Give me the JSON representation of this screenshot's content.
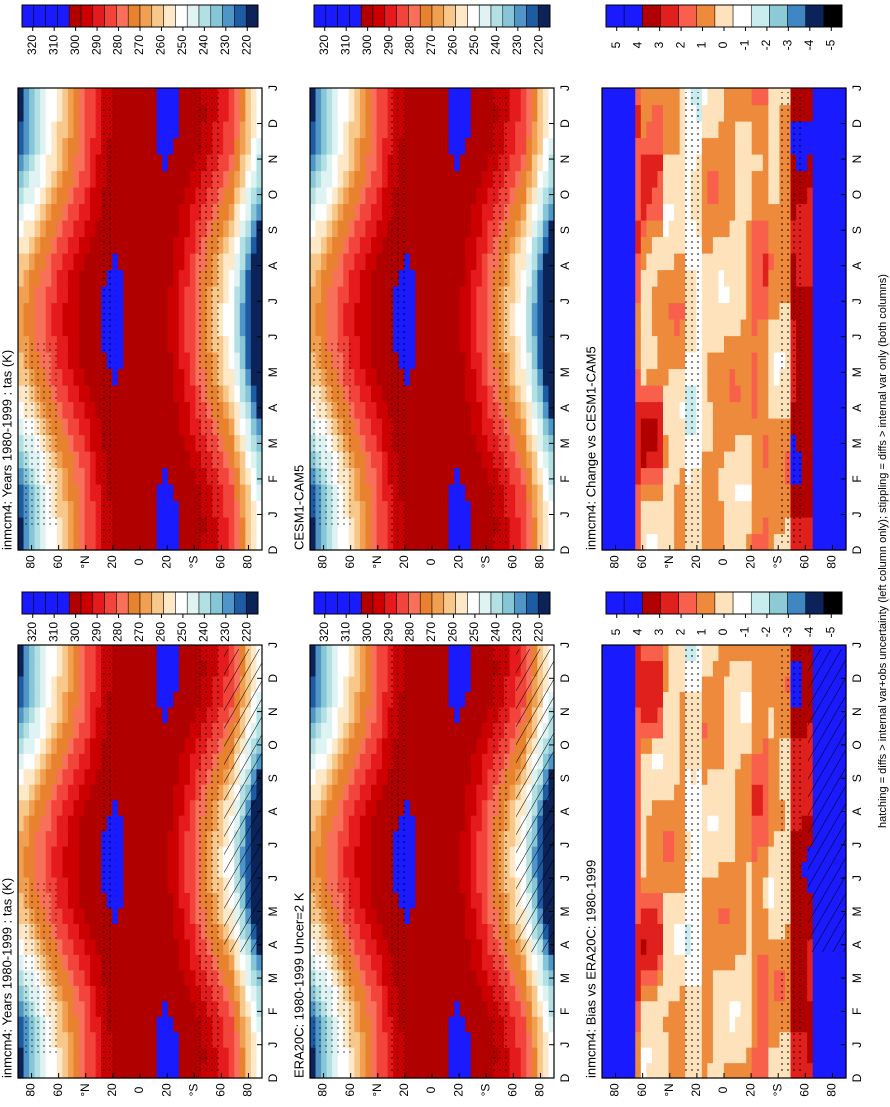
{
  "months": [
    "D",
    "J",
    "F",
    "M",
    "A",
    "M",
    "J",
    "J",
    "A",
    "S",
    "O",
    "N",
    "D",
    "J"
  ],
  "lat_ticks": [
    80,
    60,
    {
      "value": 40,
      "label": "°N"
    },
    20,
    0,
    {
      "value": -20,
      "label": "20"
    },
    {
      "value": -40,
      "label": "°S"
    },
    {
      "value": -60,
      "label": "60"
    },
    {
      "value": -80,
      "label": "80"
    }
  ],
  "footer": "hatching = diffs > internal var+obs uncertainty (left column only); stippling = diffs > internal var only (both columns)",
  "panels": [
    {
      "title": "inmcm4: Years 1980-1999 : tas (K)",
      "hatching": true,
      "stippling": true,
      "colorbar_ticks": [
        320,
        310,
        300,
        290,
        280,
        270,
        260,
        250,
        240,
        230,
        220
      ],
      "colors": [
        "#1a1aff",
        "#1a1aff",
        "#1a1aff",
        "#1a1aff",
        "#b00000",
        "#cc0000",
        "#e41a1c",
        "#f2443a",
        "#f8705a",
        "#e8822e",
        "#f0a050",
        "#f8c88a",
        "#fde8c8",
        "#ffffff",
        "#dff3f3",
        "#b3e0e2",
        "#86c6d6",
        "#4f95c8",
        "#1d5ca3",
        "#0b2358"
      ]
    },
    {
      "title": "inmcm4: Years 1980-1999 : tas (K)",
      "hatching": false,
      "stippling": true,
      "colorbar_ticks": [
        320,
        310,
        300,
        290,
        280,
        270,
        260,
        250,
        240,
        230,
        220
      ],
      "colors": [
        "#1a1aff",
        "#1a1aff",
        "#1a1aff",
        "#1a1aff",
        "#b00000",
        "#cc0000",
        "#e41a1c",
        "#f2443a",
        "#f8705a",
        "#e8822e",
        "#f0a050",
        "#f8c88a",
        "#fde8c8",
        "#ffffff",
        "#dff3f3",
        "#b3e0e2",
        "#86c6d6",
        "#4f95c8",
        "#1d5ca3",
        "#0b2358"
      ]
    },
    {
      "title": "ERA20C: 1980-1999 Uncer=2 K",
      "hatching": true,
      "stippling": true,
      "colorbar_ticks": [
        320,
        310,
        300,
        290,
        280,
        270,
        260,
        250,
        240,
        230,
        220
      ],
      "colors": [
        "#1a1aff",
        "#1a1aff",
        "#1a1aff",
        "#1a1aff",
        "#b00000",
        "#cc0000",
        "#e41a1c",
        "#f2443a",
        "#f8705a",
        "#e8822e",
        "#f0a050",
        "#f8c88a",
        "#fde8c8",
        "#ffffff",
        "#dff3f3",
        "#b3e0e2",
        "#86c6d6",
        "#4f95c8",
        "#1d5ca3",
        "#0b2358"
      ]
    },
    {
      "title": "CESM1-CAM5",
      "hatching": false,
      "stippling": true,
      "colorbar_ticks": [
        320,
        310,
        300,
        290,
        280,
        270,
        260,
        250,
        240,
        230,
        220
      ],
      "colors": [
        "#1a1aff",
        "#1a1aff",
        "#1a1aff",
        "#1a1aff",
        "#b00000",
        "#cc0000",
        "#e41a1c",
        "#f2443a",
        "#f8705a",
        "#e8822e",
        "#f0a050",
        "#f8c88a",
        "#fde8c8",
        "#ffffff",
        "#dff3f3",
        "#b3e0e2",
        "#86c6d6",
        "#4f95c8",
        "#1d5ca3",
        "#0b2358"
      ]
    },
    {
      "title": "inmcm4: Bias vs ERA20C: 1980-1999",
      "hatching": true,
      "stippling": true,
      "colorbar_ticks": [
        5,
        4,
        3,
        2,
        1,
        0,
        -1,
        -2,
        -3,
        -4,
        -5
      ],
      "colors": [
        "#1a1aff",
        "#1a1aff",
        "#b00000",
        "#e0201c",
        "#f8604c",
        "#ee8a3c",
        "#fde2bc",
        "#ffffff",
        "#c9ecee",
        "#8ccad8",
        "#3f86c2",
        "#0b2358",
        "#000000"
      ]
    },
    {
      "title": "inmcm4: Change vs CESM1-CAM5",
      "hatching": false,
      "stippling": true,
      "colorbar_ticks": [
        5,
        4,
        3,
        2,
        1,
        0,
        -1,
        -2,
        -3,
        -4,
        -5
      ],
      "colors": [
        "#1a1aff",
        "#1a1aff",
        "#b00000",
        "#e0201c",
        "#f8604c",
        "#ee8a3c",
        "#fde2bc",
        "#ffffff",
        "#c9ecee",
        "#8ccad8",
        "#3f86c2",
        "#0b2358",
        "#000000"
      ]
    }
  ]
}
